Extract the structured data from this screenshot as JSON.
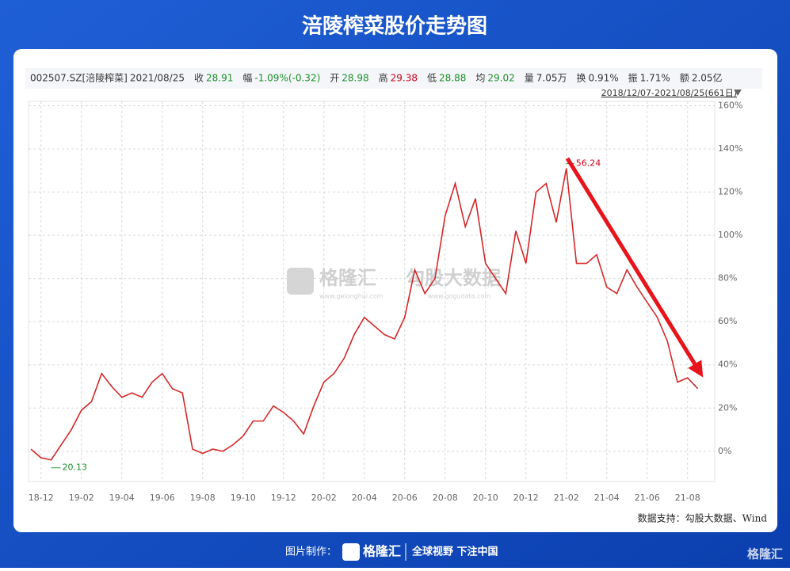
{
  "chart_data": {
    "type": "line",
    "title": "涪陵榨菜股价走势图",
    "info": [
      {
        "label": "002507.SZ[涪陵榨菜]",
        "color": "#333333"
      },
      {
        "label": "2021/08/25",
        "color": "#333333"
      },
      {
        "label": "收",
        "color": "#333333"
      },
      {
        "label": "28.91",
        "color": "#1a8f2a"
      },
      {
        "label": "幅",
        "color": "#333333"
      },
      {
        "label": "-1.09%(-0.32)",
        "color": "#1a8f2a"
      },
      {
        "label": "开",
        "color": "#333333"
      },
      {
        "label": "28.98",
        "color": "#1a8f2a"
      },
      {
        "label": "高",
        "color": "#333333"
      },
      {
        "label": "29.38",
        "color": "#d0021b"
      },
      {
        "label": "低",
        "color": "#333333"
      },
      {
        "label": "28.88",
        "color": "#1a8f2a"
      },
      {
        "label": "均",
        "color": "#333333"
      },
      {
        "label": "29.02",
        "color": "#1a8f2a"
      },
      {
        "label": "量",
        "color": "#333333"
      },
      {
        "label": "7.05万",
        "color": "#333333"
      },
      {
        "label": "换",
        "color": "#333333"
      },
      {
        "label": "0.91%",
        "color": "#333333"
      },
      {
        "label": "振",
        "color": "#333333"
      },
      {
        "label": "1.71%",
        "color": "#333333"
      },
      {
        "label": "额",
        "color": "#333333"
      },
      {
        "label": "2.05亿",
        "color": "#333333"
      }
    ],
    "range_label": "2018/12/07-2021/08/25(661日)",
    "high_label": "56.24",
    "low_label": "20.13",
    "source": "数据支持：勾股大数据、Wind",
    "watermark": [
      "格隆汇",
      "勾股大数据",
      "www.gelonghui.com",
      "www.gogudata.com"
    ],
    "footer": {
      "made_by": "图片制作：",
      "brand": "格隆汇",
      "slogan": "全球视野 下注中国"
    },
    "categories": [
      null,
      "18-12",
      null,
      null,
      null,
      "19-02",
      null,
      null,
      null,
      "19-04",
      null,
      null,
      null,
      "19-06",
      null,
      null,
      null,
      "19-08",
      null,
      null,
      null,
      "19-10",
      null,
      null,
      null,
      "19-12",
      null,
      null,
      null,
      "20-02",
      null,
      null,
      null,
      "20-04",
      null,
      null,
      null,
      "20-06",
      null,
      null,
      null,
      "20-08",
      null,
      null,
      null,
      "20-10",
      null,
      null,
      null,
      "20-12",
      null,
      null,
      null,
      "21-02",
      null,
      null,
      null,
      "21-04",
      null,
      null,
      null,
      "21-06",
      null,
      null,
      null,
      "21-08",
      null
    ],
    "series": [
      {
        "name": "涪陵榨菜",
        "color": "#d62728",
        "values": [
          1,
          -3,
          -4,
          3,
          10,
          19,
          23,
          36,
          30,
          25,
          27,
          25,
          32,
          36,
          29,
          27,
          1,
          -1,
          1,
          0,
          3,
          7,
          14,
          14,
          21,
          18,
          14,
          8,
          21,
          32,
          36,
          43,
          54,
          62,
          58,
          54,
          52,
          62,
          84,
          73,
          80,
          109,
          124,
          104,
          117,
          87,
          80,
          73,
          102,
          87,
          120,
          124,
          106,
          131,
          87,
          87,
          91,
          76,
          73,
          84,
          76,
          69,
          62,
          51,
          32,
          34,
          29
        ]
      }
    ],
    "ylim": [
      -14,
      162
    ],
    "yticks": [
      {
        "value": 0,
        "label": "0%"
      },
      {
        "value": 20,
        "label": "20%"
      },
      {
        "value": 40,
        "label": "40%"
      },
      {
        "value": 60,
        "label": "60%"
      },
      {
        "value": 80,
        "label": "80%"
      },
      {
        "value": 100,
        "label": "100%"
      },
      {
        "value": 120,
        "label": "120%"
      },
      {
        "value": 140,
        "label": "140%"
      },
      {
        "value": 160,
        "label": "160%"
      }
    ],
    "grid": true
  }
}
